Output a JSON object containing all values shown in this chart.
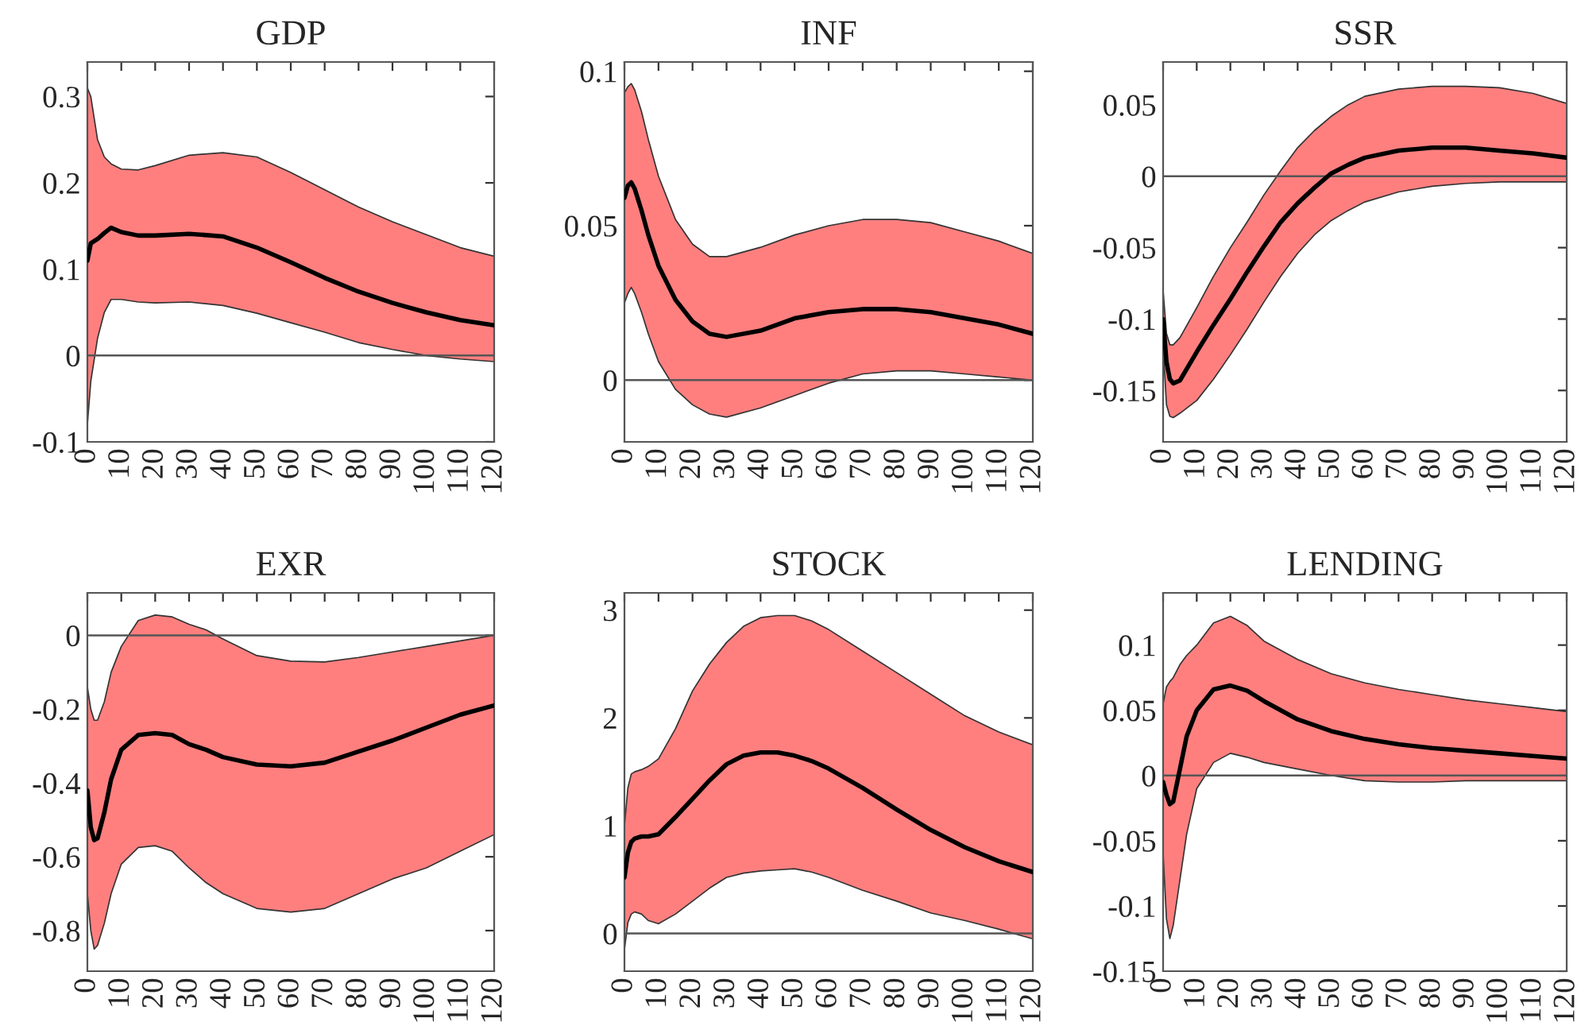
{
  "chart_data": [
    {
      "type": "line",
      "title": "GDP",
      "xlim": [
        0,
        120
      ],
      "xticks": [
        0,
        10,
        20,
        30,
        40,
        50,
        60,
        70,
        80,
        90,
        100,
        110,
        120
      ],
      "ylim": [
        -0.1,
        0.34
      ],
      "yticks": [
        {
          "value": -0.1,
          "label": "-0.1"
        },
        0,
        0.1,
        0.2,
        0.3
      ],
      "grid": false,
      "legend": false,
      "ref_lines": [
        {
          "axis": "y",
          "value": 0,
          "color": "#555555"
        }
      ],
      "series": [
        {
          "color": "#000000",
          "x": [
            0,
            1,
            3,
            5,
            7,
            10,
            15,
            20,
            30,
            40,
            50,
            60,
            70,
            80,
            90,
            100,
            110,
            120
          ],
          "values": [
            0.11,
            0.13,
            0.135,
            0.142,
            0.148,
            0.143,
            0.139,
            0.139,
            0.141,
            0.138,
            0.125,
            0.108,
            0.09,
            0.074,
            0.061,
            0.05,
            0.041,
            0.035
          ],
          "upper": [
            0.31,
            0.3,
            0.25,
            0.23,
            0.222,
            0.216,
            0.215,
            0.22,
            0.232,
            0.235,
            0.23,
            0.212,
            0.192,
            0.172,
            0.155,
            0.14,
            0.125,
            0.115
          ],
          "lower": [
            -0.08,
            -0.03,
            0.02,
            0.05,
            0.065,
            0.065,
            0.062,
            0.061,
            0.062,
            0.058,
            0.049,
            0.038,
            0.027,
            0.015,
            0.007,
            0.0,
            -0.004,
            -0.007
          ]
        }
      ]
    },
    {
      "type": "line",
      "title": "INF",
      "xlim": [
        0,
        120
      ],
      "xticks": [
        0,
        10,
        20,
        30,
        40,
        50,
        60,
        70,
        80,
        90,
        100,
        110,
        120
      ],
      "ylim": [
        -0.02,
        0.103
      ],
      "yticks": [
        0,
        0.05,
        0.1
      ],
      "grid": false,
      "legend": false,
      "ref_lines": [
        {
          "axis": "y",
          "value": 0,
          "color": "#555555"
        }
      ],
      "series": [
        {
          "color": "#000000",
          "x": [
            0,
            1,
            2,
            3,
            5,
            7,
            10,
            15,
            20,
            25,
            30,
            40,
            50,
            60,
            70,
            80,
            90,
            100,
            110,
            120
          ],
          "values": [
            0.059,
            0.063,
            0.064,
            0.062,
            0.055,
            0.047,
            0.037,
            0.026,
            0.019,
            0.015,
            0.014,
            0.016,
            0.02,
            0.022,
            0.023,
            0.023,
            0.022,
            0.02,
            0.018,
            0.015
          ],
          "upper": [
            0.093,
            0.095,
            0.096,
            0.094,
            0.087,
            0.078,
            0.066,
            0.052,
            0.044,
            0.04,
            0.04,
            0.043,
            0.047,
            0.05,
            0.052,
            0.052,
            0.051,
            0.048,
            0.045,
            0.041
          ],
          "lower": [
            0.025,
            0.028,
            0.03,
            0.028,
            0.022,
            0.015,
            0.006,
            -0.003,
            -0.008,
            -0.011,
            -0.012,
            -0.009,
            -0.005,
            -0.001,
            0.002,
            0.003,
            0.003,
            0.002,
            0.001,
            0.0
          ]
        }
      ]
    },
    {
      "type": "line",
      "title": "SSR",
      "xlim": [
        0,
        120
      ],
      "xticks": [
        0,
        10,
        20,
        30,
        40,
        50,
        60,
        70,
        80,
        90,
        100,
        110,
        120
      ],
      "ylim": [
        -0.186,
        0.08
      ],
      "yticks": [
        {
          "value": -0.15,
          "label": "-0.15"
        },
        {
          "value": -0.1,
          "label": "-0.1"
        },
        {
          "value": -0.05,
          "label": "-0.05"
        },
        0,
        0.05
      ],
      "grid": false,
      "legend": false,
      "ref_lines": [
        {
          "axis": "y",
          "value": 0,
          "color": "#555555"
        }
      ],
      "series": [
        {
          "color": "#000000",
          "x": [
            0,
            1,
            2,
            3,
            5,
            10,
            15,
            20,
            25,
            30,
            35,
            40,
            45,
            50,
            55,
            60,
            70,
            80,
            90,
            100,
            110,
            120
          ],
          "values": [
            -0.1,
            -0.13,
            -0.142,
            -0.145,
            -0.143,
            -0.123,
            -0.104,
            -0.086,
            -0.067,
            -0.049,
            -0.032,
            -0.019,
            -0.008,
            0.002,
            0.008,
            0.013,
            0.018,
            0.02,
            0.02,
            0.018,
            0.016,
            0.013
          ],
          "upper": [
            -0.08,
            -0.11,
            -0.118,
            -0.118,
            -0.113,
            -0.092,
            -0.07,
            -0.05,
            -0.032,
            -0.013,
            0.004,
            0.02,
            0.032,
            0.042,
            0.05,
            0.056,
            0.061,
            0.063,
            0.063,
            0.062,
            0.058,
            0.051
          ],
          "lower": [
            -0.12,
            -0.16,
            -0.168,
            -0.169,
            -0.166,
            -0.157,
            -0.142,
            -0.125,
            -0.107,
            -0.088,
            -0.07,
            -0.054,
            -0.041,
            -0.031,
            -0.024,
            -0.018,
            -0.011,
            -0.007,
            -0.005,
            -0.004,
            -0.004,
            -0.004
          ]
        }
      ]
    },
    {
      "type": "line",
      "title": "EXR",
      "xlim": [
        0,
        120
      ],
      "xticks": [
        0,
        10,
        20,
        30,
        40,
        50,
        60,
        70,
        80,
        90,
        100,
        110,
        120
      ],
      "ylim": [
        -0.91,
        0.115
      ],
      "yticks": [
        {
          "value": -0.8,
          "label": "-0.8"
        },
        {
          "value": -0.6,
          "label": "-0.6"
        },
        {
          "value": -0.4,
          "label": "-0.4"
        },
        {
          "value": -0.2,
          "label": "-0.2"
        },
        0
      ],
      "grid": false,
      "legend": false,
      "ref_lines": [
        {
          "axis": "y",
          "value": 0,
          "color": "#555555"
        }
      ],
      "series": [
        {
          "color": "#000000",
          "x": [
            0,
            1,
            2,
            3,
            5,
            7,
            10,
            15,
            20,
            25,
            30,
            35,
            40,
            50,
            60,
            70,
            80,
            90,
            100,
            110,
            120
          ],
          "values": [
            -0.42,
            -0.52,
            -0.555,
            -0.55,
            -0.48,
            -0.39,
            -0.31,
            -0.27,
            -0.265,
            -0.27,
            -0.295,
            -0.31,
            -0.33,
            -0.35,
            -0.355,
            -0.345,
            -0.315,
            -0.285,
            -0.25,
            -0.215,
            -0.19
          ],
          "upper": [
            -0.14,
            -0.2,
            -0.23,
            -0.23,
            -0.18,
            -0.1,
            -0.03,
            0.04,
            0.055,
            0.05,
            0.03,
            0.015,
            -0.01,
            -0.055,
            -0.07,
            -0.072,
            -0.06,
            -0.045,
            -0.03,
            -0.015,
            0.0
          ],
          "lower": [
            -0.7,
            -0.8,
            -0.85,
            -0.84,
            -0.78,
            -0.7,
            -0.62,
            -0.575,
            -0.57,
            -0.585,
            -0.63,
            -0.67,
            -0.7,
            -0.74,
            -0.75,
            -0.74,
            -0.7,
            -0.66,
            -0.63,
            -0.585,
            -0.54
          ]
        }
      ]
    },
    {
      "type": "line",
      "title": "STOCK",
      "xlim": [
        0,
        120
      ],
      "xticks": [
        0,
        10,
        20,
        30,
        40,
        50,
        60,
        70,
        80,
        90,
        100,
        110,
        120
      ],
      "ylim": [
        -0.35,
        3.16
      ],
      "yticks": [
        0,
        1,
        2,
        3
      ],
      "grid": false,
      "legend": false,
      "ref_lines": [
        {
          "axis": "y",
          "value": 0,
          "color": "#555555"
        }
      ],
      "series": [
        {
          "color": "#000000",
          "x": [
            0,
            1,
            2,
            3,
            5,
            7,
            10,
            15,
            20,
            25,
            30,
            35,
            40,
            45,
            50,
            55,
            60,
            70,
            80,
            90,
            100,
            110,
            120
          ],
          "values": [
            0.52,
            0.75,
            0.85,
            0.88,
            0.9,
            0.9,
            0.92,
            1.08,
            1.25,
            1.42,
            1.57,
            1.65,
            1.68,
            1.68,
            1.65,
            1.6,
            1.53,
            1.35,
            1.15,
            0.96,
            0.8,
            0.67,
            0.57
          ],
          "upper": [
            1.0,
            1.35,
            1.48,
            1.5,
            1.52,
            1.55,
            1.62,
            1.9,
            2.25,
            2.5,
            2.7,
            2.85,
            2.93,
            2.95,
            2.95,
            2.9,
            2.82,
            2.62,
            2.42,
            2.22,
            2.02,
            1.87,
            1.75
          ],
          "lower": [
            -0.15,
            0.1,
            0.18,
            0.2,
            0.18,
            0.12,
            0.09,
            0.18,
            0.3,
            0.42,
            0.52,
            0.56,
            0.58,
            0.59,
            0.6,
            0.57,
            0.52,
            0.4,
            0.3,
            0.19,
            0.12,
            0.04,
            -0.05
          ]
        }
      ]
    },
    {
      "type": "line",
      "title": "LENDING",
      "xlim": [
        0,
        120
      ],
      "xticks": [
        0,
        10,
        20,
        30,
        40,
        50,
        60,
        70,
        80,
        90,
        100,
        110,
        120
      ],
      "ylim": [
        -0.15,
        0.14
      ],
      "yticks": [
        {
          "value": -0.15,
          "label": "-0.15"
        },
        {
          "value": -0.1,
          "label": "-0.1"
        },
        {
          "value": -0.05,
          "label": "-0.05"
        },
        0,
        0.05,
        0.1
      ],
      "grid": false,
      "legend": false,
      "ref_lines": [
        {
          "axis": "y",
          "value": 0,
          "color": "#555555"
        }
      ],
      "series": [
        {
          "color": "#000000",
          "x": [
            0,
            1,
            2,
            3,
            5,
            7,
            10,
            15,
            20,
            25,
            30,
            40,
            50,
            60,
            70,
            80,
            90,
            100,
            110,
            120
          ],
          "values": [
            -0.005,
            -0.015,
            -0.022,
            -0.02,
            0.005,
            0.03,
            0.05,
            0.066,
            0.069,
            0.065,
            0.057,
            0.043,
            0.034,
            0.028,
            0.024,
            0.021,
            0.019,
            0.017,
            0.015,
            0.013
          ],
          "upper": [
            0.055,
            0.068,
            0.072,
            0.075,
            0.085,
            0.092,
            0.1,
            0.117,
            0.122,
            0.115,
            0.103,
            0.089,
            0.078,
            0.071,
            0.066,
            0.062,
            0.058,
            0.055,
            0.052,
            0.049
          ],
          "lower": [
            -0.06,
            -0.11,
            -0.125,
            -0.115,
            -0.08,
            -0.045,
            -0.01,
            0.01,
            0.017,
            0.014,
            0.01,
            0.005,
            0.0,
            -0.004,
            -0.005,
            -0.005,
            -0.004,
            -0.004,
            -0.004,
            -0.004
          ]
        }
      ]
    }
  ]
}
